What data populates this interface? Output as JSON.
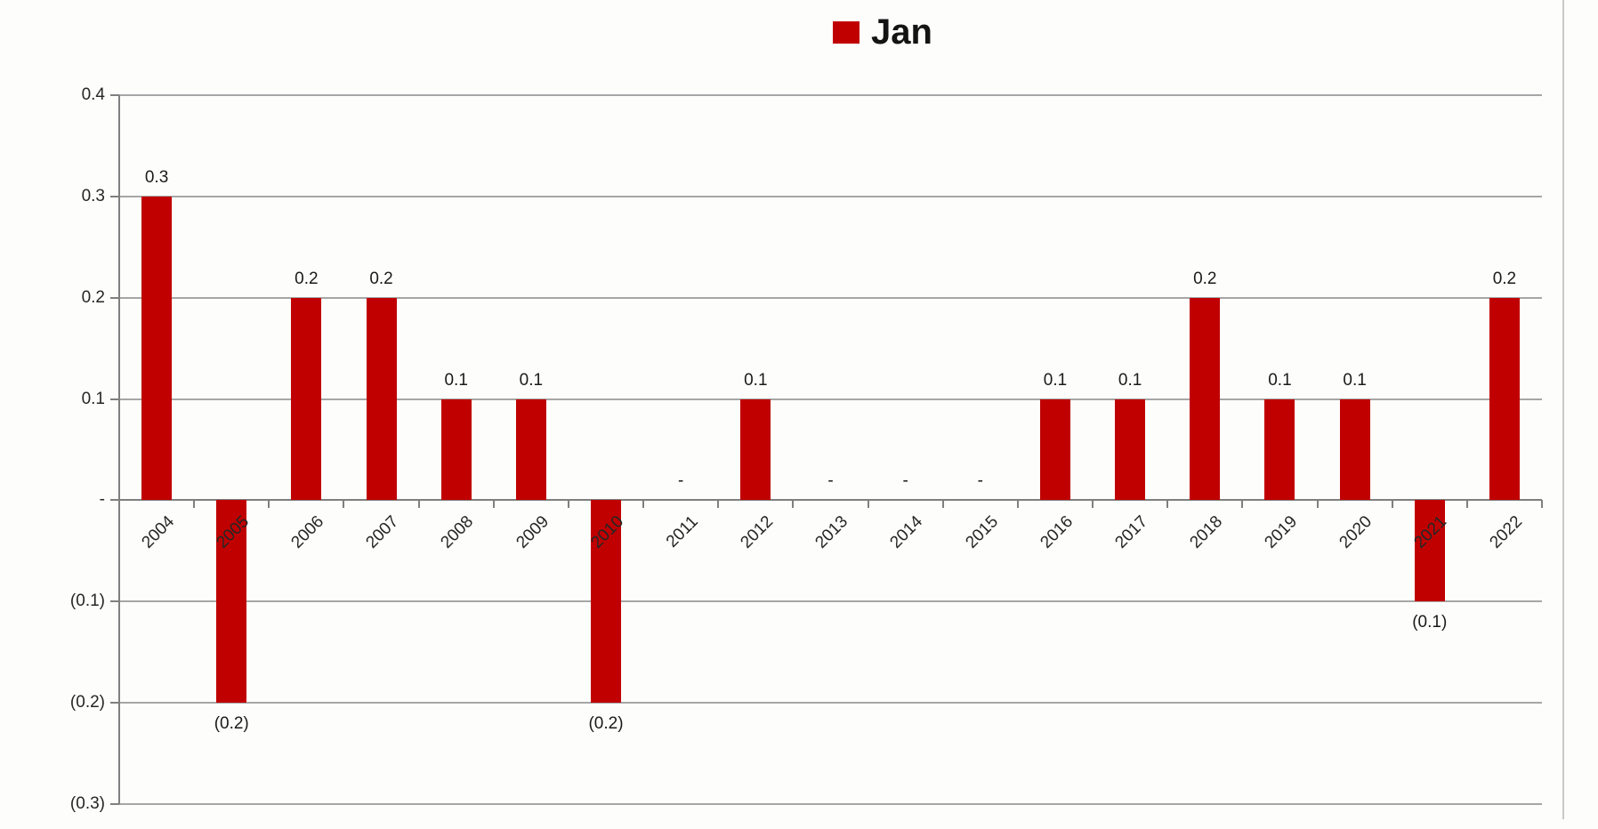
{
  "chart_data": {
    "type": "bar",
    "title": "Jan",
    "legend": {
      "position": "top-center",
      "entries": [
        {
          "label": "Jan",
          "color": "#c00000"
        }
      ]
    },
    "categories": [
      "2004",
      "2005",
      "2006",
      "2007",
      "2008",
      "2009",
      "2010",
      "2011",
      "2012",
      "2013",
      "2014",
      "2015",
      "2016",
      "2017",
      "2018",
      "2019",
      "2020",
      "2021",
      "2022"
    ],
    "series": [
      {
        "name": "Jan",
        "values": [
          0.3,
          -0.2,
          0.2,
          0.2,
          0.1,
          0.1,
          -0.2,
          0,
          0.1,
          0,
          0,
          0,
          0.1,
          0.1,
          0.2,
          0.1,
          0.1,
          -0.1,
          0.2
        ],
        "value_labels": [
          "0.3",
          "(0.2)",
          "0.2",
          "0.2",
          "0.1",
          "0.1",
          "(0.2)",
          "-",
          "0.1",
          "-",
          "-",
          "-",
          "0.1",
          "0.1",
          "0.2",
          "0.1",
          "0.1",
          "(0.1)",
          "0.2"
        ]
      }
    ],
    "xlabel": "",
    "ylabel": "",
    "ylim": [
      -0.3,
      0.4
    ],
    "yticks": [
      0.4,
      0.3,
      0.2,
      0.1,
      0,
      -0.1,
      -0.2,
      -0.3
    ],
    "ytick_labels": [
      "0.4",
      "0.3",
      "0.2",
      "0.1",
      "-",
      "(0.1)",
      "(0.2)",
      "(0.3)"
    ],
    "grid": true,
    "negative_number_format": "parentheses",
    "zero_shown_as": "-",
    "colors": {
      "bar": "#c00000",
      "gridline": "#a6a6a6",
      "axis": "#7f7f7f",
      "label_text": "#262626",
      "legend_text": "#141414",
      "chart_border": "#c9c9c6"
    }
  }
}
